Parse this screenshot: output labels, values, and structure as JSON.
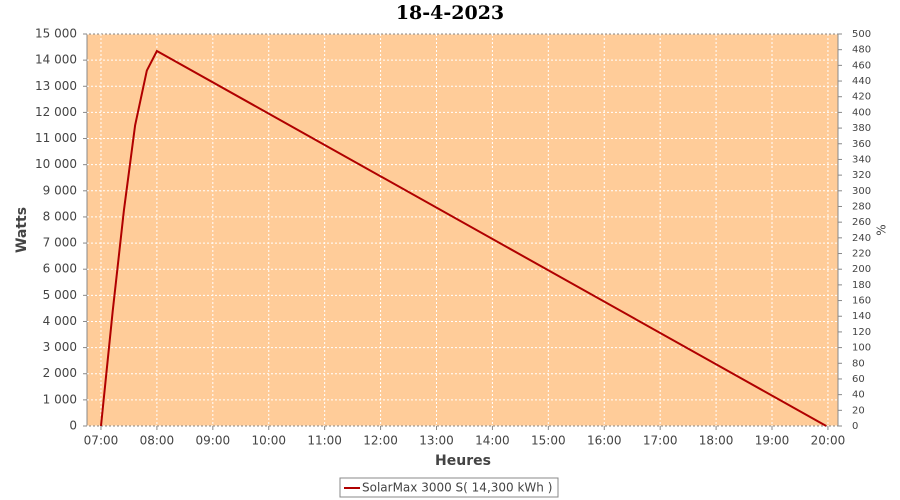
{
  "chart_data": {
    "type": "line",
    "title": "18-4-2023",
    "x_label": "Heures",
    "y_label": "Watts",
    "y2_label": "%",
    "x": [
      7.0,
      7.21,
      7.41,
      7.61,
      7.82,
      8.0,
      19.97
    ],
    "series": [
      {
        "name": "SolarMax 3000 S( 14,300 kWh )",
        "color": "#b00000",
        "values": [
          0,
          4400,
          8250,
          11500,
          13600,
          14350,
          0
        ]
      }
    ],
    "xlim": [
      6.75,
      20.18
    ],
    "xticks": [
      {
        "value": 7,
        "label": "07:00"
      },
      {
        "value": 8,
        "label": "08:00"
      },
      {
        "value": 9,
        "label": "09:00"
      },
      {
        "value": 10,
        "label": "10:00"
      },
      {
        "value": 11,
        "label": "11:00"
      },
      {
        "value": 12,
        "label": "12:00"
      },
      {
        "value": 13,
        "label": "13:00"
      },
      {
        "value": 14,
        "label": "14:00"
      },
      {
        "value": 15,
        "label": "15:00"
      },
      {
        "value": 16,
        "label": "16:00"
      },
      {
        "value": 17,
        "label": "17:00"
      },
      {
        "value": 18,
        "label": "18:00"
      },
      {
        "value": 19,
        "label": "19:00"
      },
      {
        "value": 20,
        "label": "20:00"
      }
    ],
    "ylim": [
      0,
      15000
    ],
    "yticks": [
      0,
      {
        "value": 1000,
        "label": "1 000"
      },
      {
        "value": 2000,
        "label": "2 000"
      },
      {
        "value": 3000,
        "label": "3 000"
      },
      {
        "value": 4000,
        "label": "4 000"
      },
      {
        "value": 5000,
        "label": "5 000"
      },
      {
        "value": 6000,
        "label": "6 000"
      },
      {
        "value": 7000,
        "label": "7 000"
      },
      {
        "value": 8000,
        "label": "8 000"
      },
      {
        "value": 9000,
        "label": "9 000"
      },
      {
        "value": 10000,
        "label": "10 000"
      },
      {
        "value": 11000,
        "label": "11 000"
      },
      {
        "value": 12000,
        "label": "12 000"
      },
      {
        "value": 13000,
        "label": "13 000"
      },
      {
        "value": 14000,
        "label": "14 000"
      },
      {
        "value": 15000,
        "label": "15 000"
      }
    ],
    "y2lim": [
      0,
      500
    ],
    "y2ticks": [
      0,
      20,
      40,
      60,
      80,
      100,
      120,
      140,
      160,
      180,
      200,
      220,
      240,
      260,
      280,
      300,
      320,
      340,
      360,
      380,
      400,
      420,
      440,
      460,
      480,
      500
    ],
    "grid": true,
    "plot_background": "#ffcc99",
    "legend": "bottom"
  }
}
